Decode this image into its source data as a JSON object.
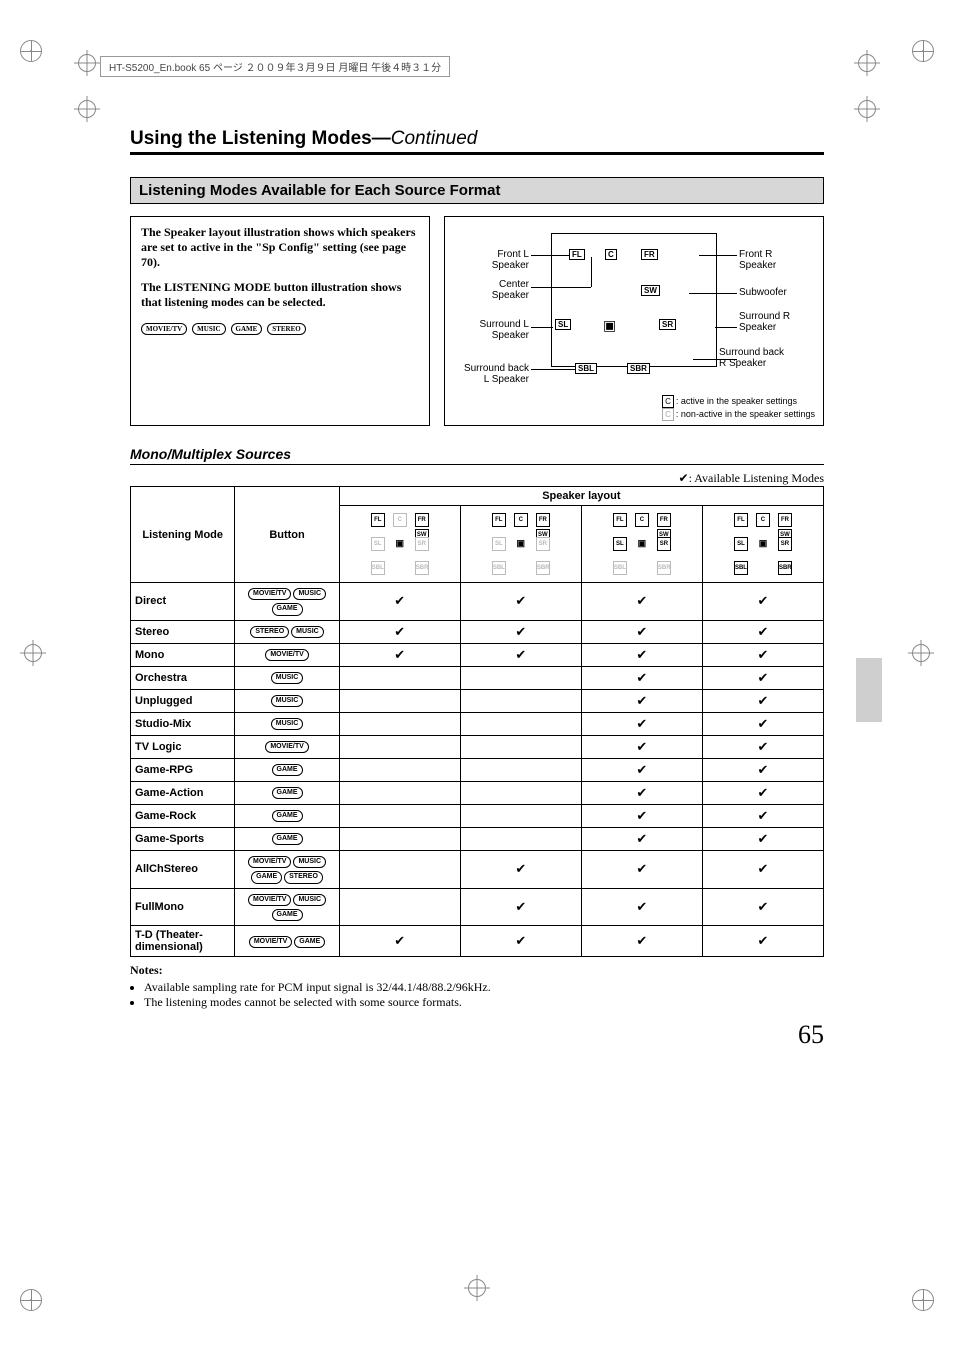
{
  "page_number": "65",
  "running_header": "HT-S5200_En.book  65 ページ  ２００９年３月９日  月曜日  午後４時３１分",
  "title_main": "Using the Listening Modes",
  "title_sep": "—",
  "title_cont": "Continued",
  "section_banner": "Listening Modes Available for Each Source Format",
  "desc_para1": "The Speaker layout illustration shows which speakers are set to active in the \"Sp Config\" setting (see page 70).",
  "desc_para2": "The LISTENING MODE button illustration shows that listening modes can be selected.",
  "buttons": {
    "movie": "MOVIE/TV",
    "music": "MUSIC",
    "game": "GAME",
    "stereo": "STEREO"
  },
  "diagram": {
    "front_l_label": "Front L\nSpeaker",
    "front_r_label": "Front R\nSpeaker",
    "center_label": "Center\nSpeaker",
    "sub_label": "Subwoofer",
    "sur_l_label": "Surround L\nSpeaker",
    "sur_r_label": "Surround R\nSpeaker",
    "sbl_label": "Surround back\nL Speaker",
    "sbr_label": "Surround back\nR Speaker",
    "legend_active": ": active in the speaker settings",
    "legend_inactive": ": non-active in the speaker settings",
    "sp_FL": "FL",
    "sp_C": "C",
    "sp_FR": "FR",
    "sp_SW": "SW",
    "sp_SL": "SL",
    "sp_SR": "SR",
    "sp_SBL": "SBL",
    "sp_SBR": "SBR"
  },
  "subsection": "Mono/Multiplex Sources",
  "avail_legend": "✔: Available Listening Modes",
  "table": {
    "col_mode": "Listening Mode",
    "col_button": "Button",
    "col_layout_group": "Speaker layout",
    "layouts": [
      {
        "FL": true,
        "C": false,
        "FR": true,
        "SW": true,
        "SL": false,
        "SR": false,
        "SBL": false,
        "SBR": false
      },
      {
        "FL": true,
        "C": true,
        "FR": true,
        "SW": true,
        "SL": false,
        "SR": false,
        "SBL": false,
        "SBR": false
      },
      {
        "FL": true,
        "C": true,
        "FR": true,
        "SW": true,
        "SL": true,
        "SR": true,
        "SBL": false,
        "SBR": false
      },
      {
        "FL": true,
        "C": true,
        "FR": true,
        "SW": true,
        "SL": true,
        "SR": true,
        "SBL": true,
        "SBR": true
      }
    ],
    "rows": [
      {
        "mode": "Direct",
        "btns": [
          "movie",
          "music",
          "game"
        ],
        "c": [
          true,
          true,
          true,
          true
        ]
      },
      {
        "mode": "Stereo",
        "btns": [
          "stereo",
          "music"
        ],
        "c": [
          true,
          true,
          true,
          true
        ]
      },
      {
        "mode": "Mono",
        "btns": [
          "movie"
        ],
        "c": [
          true,
          true,
          true,
          true
        ]
      },
      {
        "mode": "Orchestra",
        "btns": [
          "music"
        ],
        "c": [
          false,
          false,
          true,
          true
        ]
      },
      {
        "mode": "Unplugged",
        "btns": [
          "music"
        ],
        "c": [
          false,
          false,
          true,
          true
        ]
      },
      {
        "mode": "Studio-Mix",
        "btns": [
          "music"
        ],
        "c": [
          false,
          false,
          true,
          true
        ]
      },
      {
        "mode": "TV Logic",
        "btns": [
          "movie"
        ],
        "c": [
          false,
          false,
          true,
          true
        ]
      },
      {
        "mode": "Game-RPG",
        "btns": [
          "game"
        ],
        "c": [
          false,
          false,
          true,
          true
        ]
      },
      {
        "mode": "Game-Action",
        "btns": [
          "game"
        ],
        "c": [
          false,
          false,
          true,
          true
        ]
      },
      {
        "mode": "Game-Rock",
        "btns": [
          "game"
        ],
        "c": [
          false,
          false,
          true,
          true
        ]
      },
      {
        "mode": "Game-Sports",
        "btns": [
          "game"
        ],
        "c": [
          false,
          false,
          true,
          true
        ]
      },
      {
        "mode": "AllChStereo",
        "btns": [
          "movie",
          "music",
          "game",
          "stereo"
        ],
        "c": [
          false,
          true,
          true,
          true
        ]
      },
      {
        "mode": "FullMono",
        "btns": [
          "movie",
          "music",
          "game"
        ],
        "c": [
          false,
          true,
          true,
          true
        ]
      },
      {
        "mode": "T-D (Theater-dimensional)",
        "btns": [
          "movie",
          "game"
        ],
        "c": [
          true,
          true,
          true,
          true
        ]
      }
    ]
  },
  "notes_heading": "Notes:",
  "notes": [
    "Available sampling rate for PCM input signal is 32/44.1/48/88.2/96kHz.",
    "The listening modes cannot be selected with some source formats."
  ],
  "colors": {
    "banner_bg": "#d7d7d7",
    "inactive": "#bbbbbb",
    "border": "#000000",
    "tab": "#cfcfcf"
  }
}
